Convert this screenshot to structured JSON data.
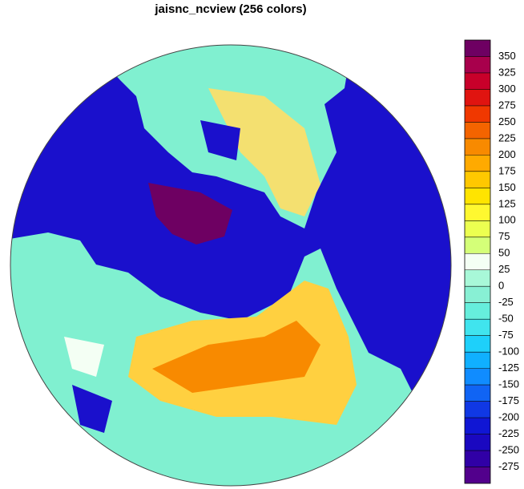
{
  "title": "jaisnc_ncview (256 colors)",
  "colorbar": {
    "ticks": [
      350,
      325,
      300,
      275,
      250,
      225,
      200,
      175,
      150,
      125,
      100,
      75,
      50,
      25,
      0,
      -25,
      -50,
      -75,
      -100,
      -125,
      -150,
      -175,
      -200,
      -225,
      -250,
      -275
    ],
    "colors": [
      "#6e0062",
      "#a8004c",
      "#c8002a",
      "#e01410",
      "#f03800",
      "#f46400",
      "#f88a00",
      "#ffaa00",
      "#ffc800",
      "#ffe400",
      "#fff830",
      "#ecff50",
      "#d4ff78",
      "#f4fff4",
      "#a8f8d8",
      "#88f0d4",
      "#66eedc",
      "#40e4ee",
      "#1ed0fa",
      "#10b0ff",
      "#108cff",
      "#1064f4",
      "#1038e4",
      "#1016d4",
      "#1a08c0",
      "#3000a6",
      "#52008c"
    ]
  }
}
